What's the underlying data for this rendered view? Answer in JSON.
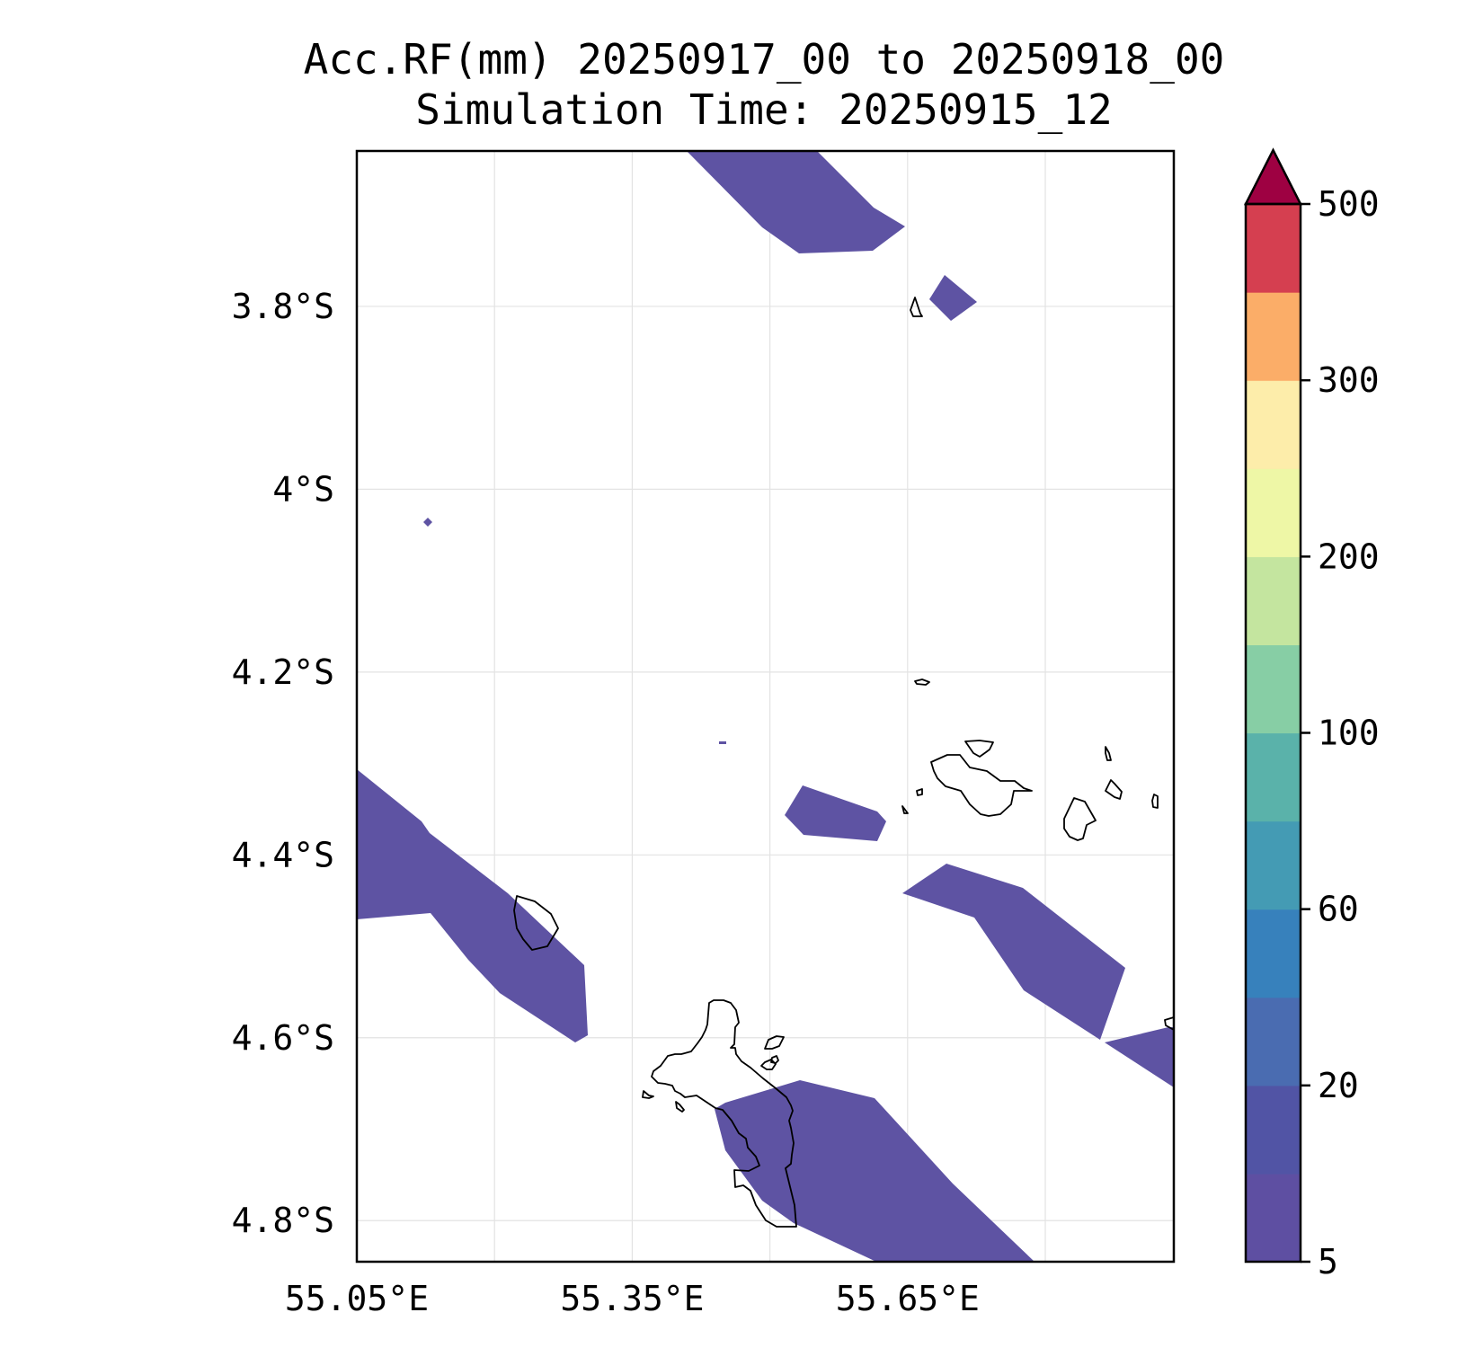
{
  "title": {
    "line1": "Acc.RF(mm) 20250917_00 to 20250918_00",
    "line2": "Simulation Time: 20250915_12"
  },
  "map": {
    "extent": {
      "lon_min": 55.05,
      "lon_max": 55.94,
      "lat_min": -4.845,
      "lat_max": -3.63
    },
    "lat_ticks": [
      {
        "value": -3.8,
        "label": "3.8°S"
      },
      {
        "value": -4.0,
        "label": "4°S"
      },
      {
        "value": -4.2,
        "label": "4.2°S"
      },
      {
        "value": -4.4,
        "label": "4.4°S"
      },
      {
        "value": -4.6,
        "label": "4.6°S"
      },
      {
        "value": -4.8,
        "label": "4.8°S"
      }
    ],
    "lon_ticks": [
      {
        "value": 55.05,
        "label": "55.05°E"
      },
      {
        "value": 55.35,
        "label": "55.35°E"
      },
      {
        "value": 55.65,
        "label": "55.65°E"
      }
    ],
    "grid_lons": [
      55.2,
      55.35,
      55.5,
      55.65,
      55.8
    ],
    "grid_lats": [
      -3.8,
      -4.0,
      -4.2,
      -4.4,
      -4.6,
      -4.8
    ],
    "grid": true,
    "fill_color": "#5e53a3",
    "coastline_color": "#000000"
  },
  "colorbar": {
    "levels": [
      5,
      10,
      20,
      40,
      60,
      80,
      100,
      150,
      200,
      250,
      300,
      400,
      500
    ],
    "colors": [
      "#5e4fa2",
      "#5154a5",
      "#4a6cb1",
      "#3781bc",
      "#449bb4",
      "#5ab2aa",
      "#87cea5",
      "#c4e59f",
      "#eef7a6",
      "#fdedaa",
      "#fbad68",
      "#d53f50"
    ],
    "extend_color": "#9e0142",
    "tick_labels": [
      "5",
      "20",
      "60",
      "100",
      "200",
      "300",
      "500"
    ],
    "extend": "max"
  }
}
